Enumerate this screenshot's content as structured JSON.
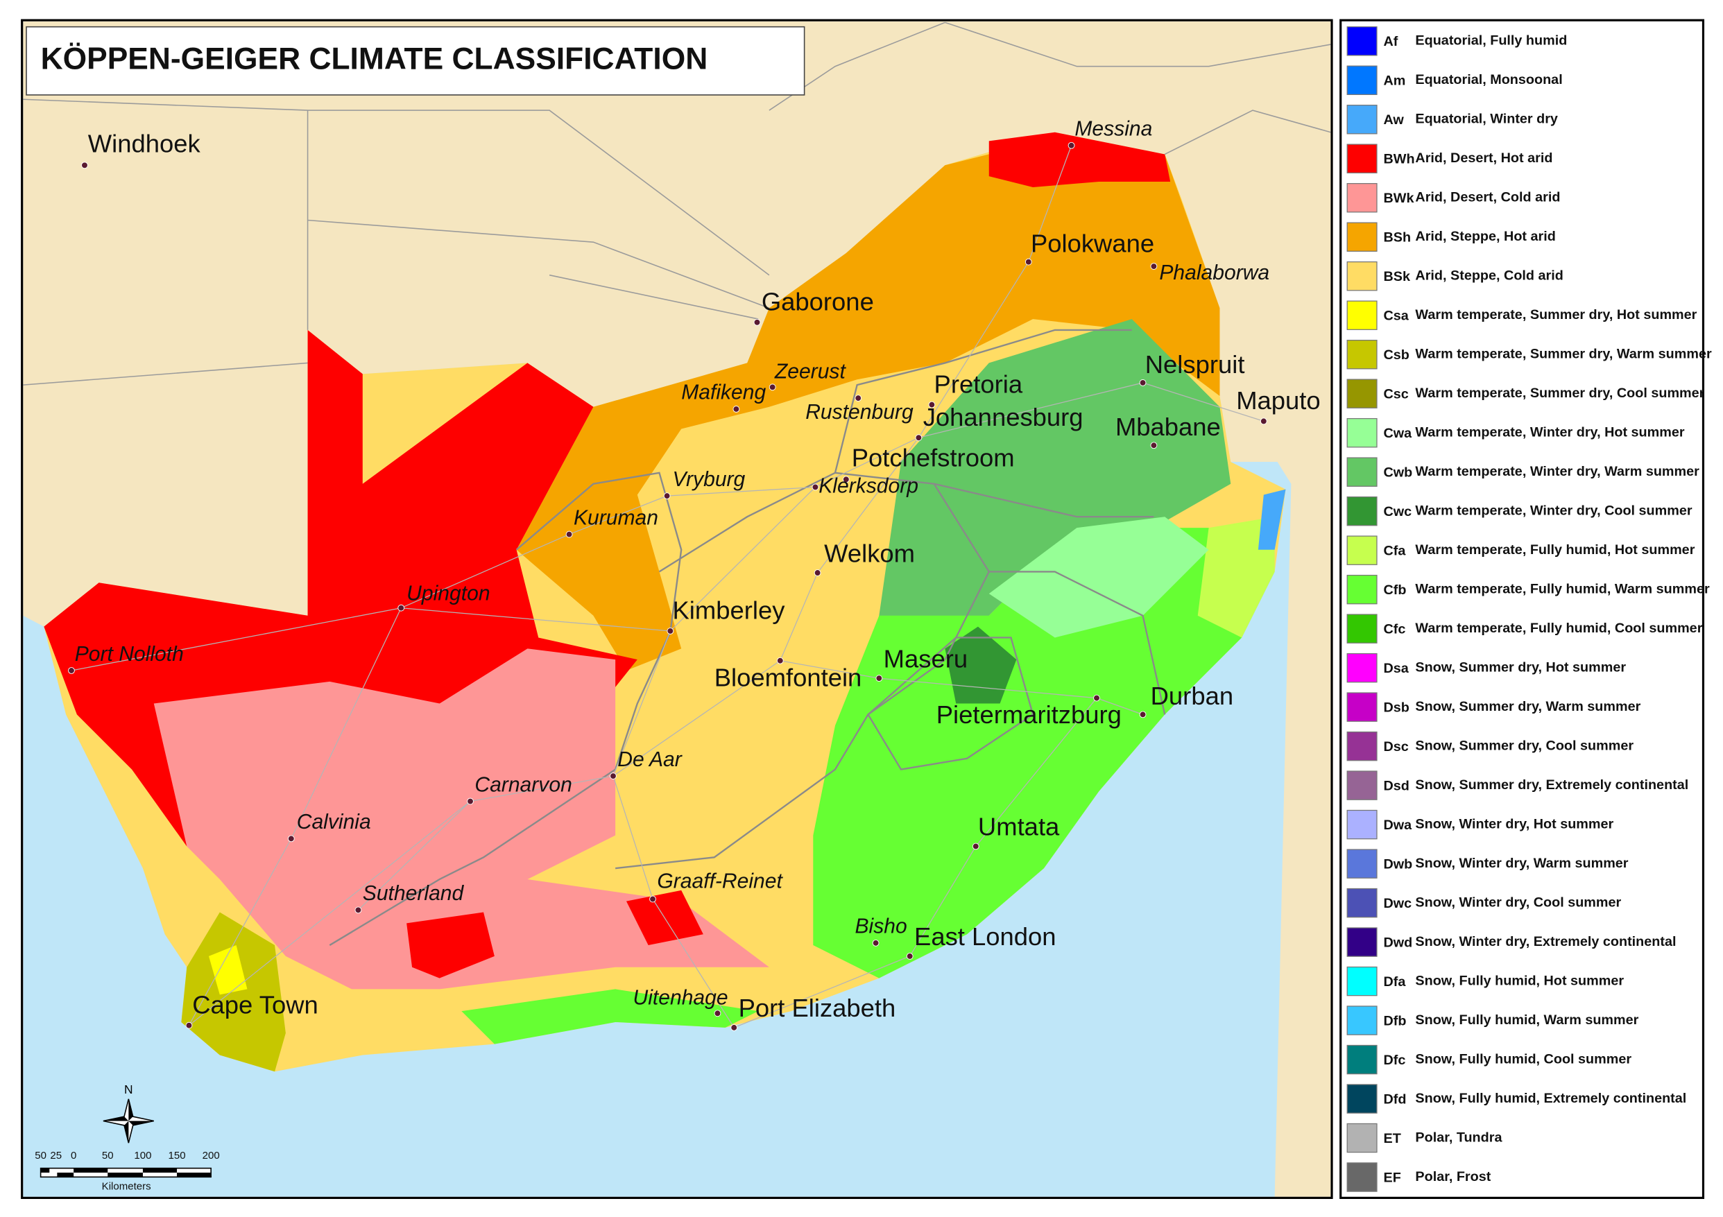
{
  "header": {
    "title": "KÖPPEN-GEIGER CLIMATE CLASSIFICATION"
  },
  "legend": {
    "items": [
      {
        "code": "Af",
        "label": "Equatorial, Fully humid",
        "color": "#0000fe"
      },
      {
        "code": "Am",
        "label": "Equatorial, Monsoonal",
        "color": "#0077ff"
      },
      {
        "code": "Aw",
        "label": "Equatorial, Winter dry",
        "color": "#46a9fa"
      },
      {
        "code": "BWh",
        "label": "Arid, Desert, Hot arid",
        "color": "#fe0000"
      },
      {
        "code": "BWk",
        "label": "Arid, Desert, Cold arid",
        "color": "#fe9696"
      },
      {
        "code": "BSh",
        "label": "Arid, Steppe, Hot arid",
        "color": "#f5a500"
      },
      {
        "code": "BSk",
        "label": "Arid, Steppe, Cold arid",
        "color": "#ffdc64"
      },
      {
        "code": "Csa",
        "label": "Warm temperate, Summer dry, Hot summer",
        "color": "#ffff00"
      },
      {
        "code": "Csb",
        "label": "Warm temperate, Summer dry, Warm summer",
        "color": "#c6c700"
      },
      {
        "code": "Csc",
        "label": "Warm temperate, Summer dry, Cool summer",
        "color": "#969600"
      },
      {
        "code": "Cwa",
        "label": "Warm temperate, Winter dry, Hot summer",
        "color": "#96ff96"
      },
      {
        "code": "Cwb",
        "label": "Warm temperate, Winter dry, Warm summer",
        "color": "#63c764"
      },
      {
        "code": "Cwc",
        "label": "Warm temperate, Winter dry, Cool summer",
        "color": "#329633"
      },
      {
        "code": "Cfa",
        "label": "Warm temperate, Fully humid, Hot summer",
        "color": "#c6ff4e"
      },
      {
        "code": "Cfb",
        "label": "Warm temperate, Fully humid, Warm summer",
        "color": "#66ff33"
      },
      {
        "code": "Cfc",
        "label": "Warm temperate, Fully humid, Cool summer",
        "color": "#33c701"
      },
      {
        "code": "Dsa",
        "label": "Snow, Summer dry, Hot summer",
        "color": "#ff00fe"
      },
      {
        "code": "Dsb",
        "label": "Snow, Summer dry, Warm summer",
        "color": "#c600c7"
      },
      {
        "code": "Dsc",
        "label": "Snow, Summer dry, Cool summer",
        "color": "#963295"
      },
      {
        "code": "Dsd",
        "label": "Snow, Summer dry, Extremely continental",
        "color": "#966495"
      },
      {
        "code": "Dwa",
        "label": "Snow, Winter dry, Hot summer",
        "color": "#abb1ff"
      },
      {
        "code": "Dwb",
        "label": "Snow, Winter dry, Warm summer",
        "color": "#5a77db"
      },
      {
        "code": "Dwc",
        "label": "Snow, Winter dry, Cool summer",
        "color": "#4c51b5"
      },
      {
        "code": "Dwd",
        "label": "Snow, Winter dry, Extremely continental",
        "color": "#320087"
      },
      {
        "code": "Dfa",
        "label": "Snow, Fully humid, Hot summer",
        "color": "#00ffff"
      },
      {
        "code": "Dfb",
        "label": "Snow, Fully humid, Warm summer",
        "color": "#38c7ff"
      },
      {
        "code": "Dfc",
        "label": "Snow, Fully humid, Cool summer",
        "color": "#007e7d"
      },
      {
        "code": "Dfd",
        "label": "Snow, Fully humid, Extremely continental",
        "color": "#00455e"
      },
      {
        "code": "ET",
        "label": "Polar, Tundra",
        "color": "#b2b2b2"
      },
      {
        "code": "EF",
        "label": "Polar, Frost",
        "color": "#686868"
      }
    ]
  },
  "cities": [
    {
      "name": "Windhoek",
      "italic": false
    },
    {
      "name": "Messina",
      "italic": true
    },
    {
      "name": "Polokwane",
      "italic": false
    },
    {
      "name": "Phalaborwa",
      "italic": true
    },
    {
      "name": "Gaborone",
      "italic": false
    },
    {
      "name": "Nelspruit",
      "italic": false
    },
    {
      "name": "Maputo",
      "italic": false
    },
    {
      "name": "Zeerust",
      "italic": true
    },
    {
      "name": "Mafikeng",
      "italic": true
    },
    {
      "name": "Pretoria",
      "italic": false
    },
    {
      "name": "Rustenburg",
      "italic": true
    },
    {
      "name": "Johannesburg",
      "italic": false
    },
    {
      "name": "Mbabane",
      "italic": false
    },
    {
      "name": "Potchefstroom",
      "italic": false
    },
    {
      "name": "Klerksdorp",
      "italic": true
    },
    {
      "name": "Vryburg",
      "italic": true
    },
    {
      "name": "Kuruman",
      "italic": true
    },
    {
      "name": "Welkom",
      "italic": false
    },
    {
      "name": "Upington",
      "italic": true
    },
    {
      "name": "Kimberley",
      "italic": false
    },
    {
      "name": "Port Nolloth",
      "italic": true
    },
    {
      "name": "Bloemfontein",
      "italic": false
    },
    {
      "name": "Maseru",
      "italic": false
    },
    {
      "name": "Pietermaritzburg",
      "italic": false
    },
    {
      "name": "Durban",
      "italic": false
    },
    {
      "name": "De Aar",
      "italic": true
    },
    {
      "name": "Carnarvon",
      "italic": true
    },
    {
      "name": "Calvinia",
      "italic": true
    },
    {
      "name": "Umtata",
      "italic": false
    },
    {
      "name": "Sutherland",
      "italic": true
    },
    {
      "name": "Graaff-Reinet",
      "italic": true
    },
    {
      "name": "Bisho",
      "italic": true
    },
    {
      "name": "East London",
      "italic": false
    },
    {
      "name": "Cape Town",
      "italic": false
    },
    {
      "name": "Uitenhage",
      "italic": true
    },
    {
      "name": "Port Elizabeth",
      "italic": false
    }
  ],
  "scale_bar": {
    "ticks": [
      "50",
      "25",
      "0",
      "50",
      "100",
      "150",
      "200"
    ],
    "unit": "Kilometers"
  },
  "north": "N"
}
